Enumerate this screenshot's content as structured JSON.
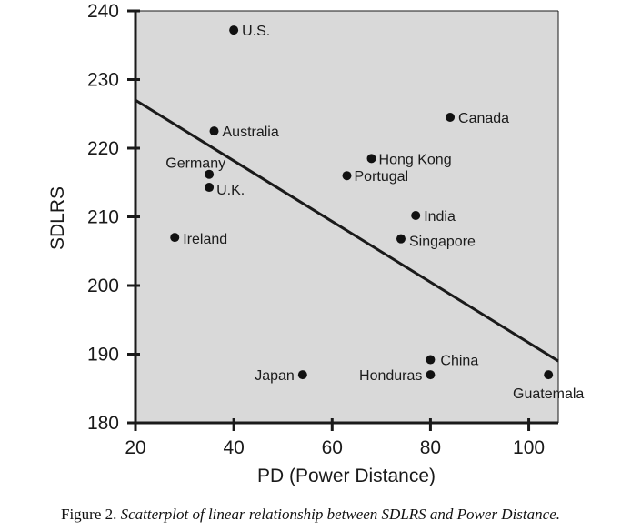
{
  "chart_data": {
    "type": "scatter",
    "xlabel": "PD (Power Distance)",
    "ylabel": "SDLRS",
    "xlim": [
      20,
      106
    ],
    "ylim": [
      180,
      240
    ],
    "x_ticks": [
      20,
      40,
      60,
      80,
      100
    ],
    "y_ticks": [
      180,
      190,
      200,
      210,
      220,
      230,
      240
    ],
    "grid": false,
    "points": [
      {
        "label": "U.S.",
        "x": 40,
        "y": 237.2
      },
      {
        "label": "Australia",
        "x": 36,
        "y": 222.5
      },
      {
        "label": "Canada",
        "x": 84,
        "y": 224.5
      },
      {
        "label": "Germany",
        "x": 35,
        "y": 216.2
      },
      {
        "label": "U.K.",
        "x": 35,
        "y": 214.3
      },
      {
        "label": "Hong Kong",
        "x": 68,
        "y": 218.5
      },
      {
        "label": "Portugal",
        "x": 63,
        "y": 216
      },
      {
        "label": "India",
        "x": 77,
        "y": 210.2
      },
      {
        "label": "Ireland",
        "x": 28,
        "y": 207
      },
      {
        "label": "Singapore",
        "x": 74,
        "y": 206.8
      },
      {
        "label": "China",
        "x": 80,
        "y": 189.2
      },
      {
        "label": "Japan",
        "x": 54,
        "y": 187
      },
      {
        "label": "Honduras",
        "x": 80,
        "y": 187
      },
      {
        "label": "Guatemala",
        "x": 104,
        "y": 187
      }
    ],
    "trendline": {
      "x": [
        20,
        106
      ],
      "y": [
        227,
        189
      ]
    }
  },
  "caption": {
    "prefix": "Figure 2.",
    "text": "Scatterplot of linear relationship between SDLRS and Power Distance."
  }
}
